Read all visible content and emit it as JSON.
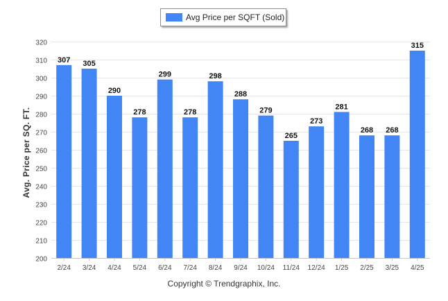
{
  "legend": {
    "label": "Avg Price per SQFT (Sold)",
    "color": "#4285f4"
  },
  "copyright": "Copyright © Trendgraphix, Inc.",
  "chart_data": {
    "type": "bar",
    "title": "",
    "xlabel": "",
    "ylabel": "Avg. Price per SQ. FT.",
    "ylim": [
      200,
      320
    ],
    "yticks": [
      200,
      210,
      220,
      230,
      240,
      250,
      260,
      270,
      280,
      290,
      300,
      310,
      320
    ],
    "grid": true,
    "legend_position": "top-center",
    "bar_color": "#4285f4",
    "categories": [
      "2/24",
      "3/24",
      "4/24",
      "5/24",
      "6/24",
      "7/24",
      "8/24",
      "9/24",
      "10/24",
      "11/24",
      "12/24",
      "1/25",
      "2/25",
      "3/25",
      "4/25"
    ],
    "series": [
      {
        "name": "Avg Price per SQFT (Sold)",
        "values": [
          307,
          305,
          290,
          278,
          299,
          278,
          298,
          288,
          279,
          265,
          273,
          281,
          268,
          268,
          315
        ]
      }
    ]
  }
}
